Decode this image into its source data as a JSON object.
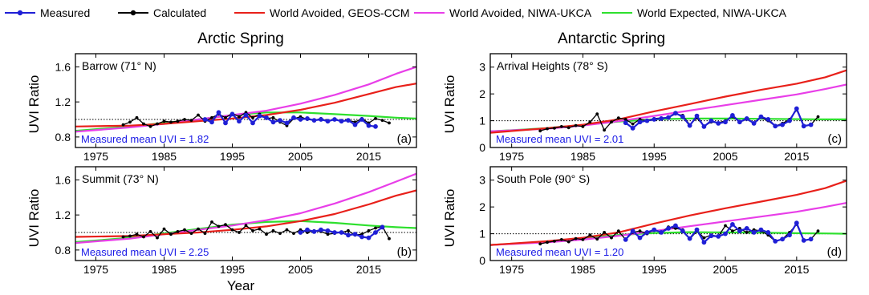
{
  "legend": [
    {
      "key": "measured",
      "label": "Measured",
      "color": "#1f1fd6",
      "marker": "dot"
    },
    {
      "key": "calculated",
      "label": "Calculated",
      "color": "#000000",
      "marker": "dot"
    },
    {
      "key": "wa_geos",
      "label": "World Avoided, GEOS-CCM",
      "color": "#e8201a",
      "marker": "none"
    },
    {
      "key": "wa_niwa",
      "label": "World Avoided, NIWA-UKCA",
      "color": "#e83ee8",
      "marker": "none"
    },
    {
      "key": "we_niwa",
      "label": "World Expected, NIWA-UKCA",
      "color": "#2ee02e",
      "marker": "none"
    }
  ],
  "column_titles": {
    "left": "Arctic Spring",
    "right": "Antarctic Spring"
  },
  "xlabel": "Year",
  "ylabel": "UVI Ratio",
  "chart_data": [
    {
      "id": "a",
      "type": "line",
      "letter": "(a)",
      "site": "Barrow (71° N)",
      "mean_label": "Measured mean UVI = 1.82",
      "xlim": [
        1972,
        2022
      ],
      "ylim": [
        0.68,
        1.75
      ],
      "yticks": [
        0.8,
        1.2,
        1.6
      ],
      "xticks": [
        1975,
        1985,
        1995,
        2005,
        2015
      ],
      "reference_line": 1.0,
      "series": [
        {
          "key": "wa_geos",
          "x": [
            1972,
            1980,
            1985,
            1990,
            1995,
            2000,
            2005,
            2010,
            2015,
            2019,
            2022
          ],
          "y": [
            0.92,
            0.93,
            0.95,
            0.98,
            1.01,
            1.05,
            1.11,
            1.19,
            1.29,
            1.37,
            1.41
          ]
        },
        {
          "key": "wa_niwa",
          "x": [
            1972,
            1980,
            1985,
            1990,
            1995,
            2000,
            2005,
            2010,
            2015,
            2019,
            2022
          ],
          "y": [
            0.86,
            0.91,
            0.95,
            1.0,
            1.05,
            1.1,
            1.18,
            1.28,
            1.4,
            1.52,
            1.6
          ]
        },
        {
          "key": "we_niwa",
          "x": [
            1972,
            1980,
            1985,
            1990,
            1995,
            2000,
            2005,
            2010,
            2015,
            2019,
            2022
          ],
          "y": [
            0.87,
            0.92,
            0.96,
            1.0,
            1.05,
            1.08,
            1.08,
            1.06,
            1.04,
            1.02,
            1.01
          ]
        },
        {
          "key": "calculated",
          "x": [
            1979,
            1980,
            1981,
            1982,
            1983,
            1984,
            1985,
            1986,
            1987,
            1988,
            1989,
            1990,
            1991,
            1992,
            1993,
            1994,
            1995,
            1996,
            1997,
            1998,
            1999,
            2000,
            2001,
            2002,
            2003,
            2004,
            2005,
            2006,
            2007,
            2008,
            2009,
            2010,
            2011,
            2012,
            2013,
            2014,
            2015,
            2016,
            2017,
            2018
          ],
          "y": [
            0.94,
            0.97,
            1.02,
            0.95,
            0.92,
            0.95,
            0.98,
            0.97,
            0.98,
            1.0,
            0.99,
            1.05,
            0.98,
            1.02,
            1.06,
            1.02,
            1.07,
            1.03,
            1.08,
            1.02,
            1.06,
            1.01,
            1.02,
            0.97,
            0.93,
            1.01,
            1.03,
            1.0,
            0.99,
            1.01,
            0.98,
            1.0,
            0.98,
            0.99,
            0.97,
            1.01,
            0.96,
            1.01,
            0.99,
            0.96
          ]
        },
        {
          "key": "measured",
          "x": [
            1991,
            1992,
            1993,
            1994,
            1995,
            1996,
            1997,
            1998,
            1999,
            2000,
            2001,
            2002,
            2003,
            2004,
            2005,
            2006,
            2007,
            2008,
            2009,
            2010,
            2011,
            2012,
            2013,
            2014,
            2015,
            2016
          ],
          "y": [
            1.0,
            0.97,
            1.08,
            0.96,
            1.06,
            0.98,
            1.05,
            0.96,
            1.04,
            1.02,
            0.97,
            0.99,
            0.96,
            1.02,
            1.0,
            1.01,
            0.99,
            1.0,
            0.98,
            1.0,
            0.98,
            0.99,
            0.94,
            1.0,
            0.93,
            0.92
          ]
        }
      ]
    },
    {
      "id": "b",
      "type": "line",
      "letter": "(b)",
      "site": "Summit (73° N)",
      "mean_label": "Measured mean UVI = 2.25",
      "xlim": [
        1972,
        2022
      ],
      "ylim": [
        0.68,
        1.75
      ],
      "yticks": [
        0.8,
        1.2,
        1.6
      ],
      "xticks": [
        1975,
        1985,
        1995,
        2005,
        2015
      ],
      "reference_line": 1.0,
      "series": [
        {
          "key": "wa_geos",
          "x": [
            1972,
            1980,
            1985,
            1990,
            1995,
            2000,
            2005,
            2010,
            2015,
            2019,
            2022
          ],
          "y": [
            0.95,
            0.96,
            0.98,
            1.0,
            1.03,
            1.07,
            1.13,
            1.21,
            1.32,
            1.42,
            1.48
          ]
        },
        {
          "key": "wa_niwa",
          "x": [
            1972,
            1980,
            1985,
            1990,
            1995,
            2000,
            2005,
            2010,
            2015,
            2019,
            2022
          ],
          "y": [
            0.88,
            0.93,
            0.98,
            1.03,
            1.08,
            1.14,
            1.22,
            1.33,
            1.46,
            1.58,
            1.67
          ]
        },
        {
          "key": "we_niwa",
          "x": [
            1972,
            1980,
            1985,
            1990,
            1995,
            2000,
            2005,
            2010,
            2015,
            2019,
            2022
          ],
          "y": [
            0.89,
            0.94,
            0.99,
            1.04,
            1.09,
            1.12,
            1.13,
            1.11,
            1.08,
            1.06,
            1.05
          ]
        },
        {
          "key": "calculated",
          "x": [
            1979,
            1980,
            1981,
            1982,
            1983,
            1984,
            1985,
            1986,
            1987,
            1988,
            1989,
            1990,
            1991,
            1992,
            1993,
            1994,
            1995,
            1996,
            1997,
            1998,
            1999,
            2000,
            2001,
            2002,
            2003,
            2004,
            2005,
            2006,
            2007,
            2008,
            2009,
            2010,
            2011,
            2012,
            2013,
            2014,
            2015,
            2016,
            2017,
            2018
          ],
          "y": [
            0.95,
            0.96,
            0.98,
            0.95,
            1.01,
            0.94,
            1.04,
            0.98,
            1.01,
            1.03,
            0.99,
            1.04,
            0.99,
            1.12,
            1.07,
            1.09,
            1.03,
            1.0,
            1.08,
            1.02,
            1.04,
            0.98,
            1.02,
            0.99,
            1.03,
            0.99,
            1.03,
            1.0,
            1.02,
            1.01,
            0.98,
            0.99,
            1.0,
            1.02,
            0.97,
            0.98,
            1.02,
            1.05,
            1.07,
            0.93
          ]
        },
        {
          "key": "measured",
          "x": [
            2005,
            2006,
            2007,
            2008,
            2009,
            2010,
            2011,
            2012,
            2013,
            2014,
            2015,
            2016,
            2017
          ],
          "y": [
            1.0,
            1.03,
            1.01,
            1.03,
            1.02,
            1.0,
            1.0,
            0.97,
            0.98,
            0.95,
            0.94,
            1.0,
            1.06
          ]
        }
      ]
    },
    {
      "id": "c",
      "type": "line",
      "letter": "(c)",
      "site": "Arrival Heights (78° S)",
      "mean_label": "Measured mean UVI = 2.01",
      "xlim": [
        1972,
        2022
      ],
      "ylim": [
        0,
        3.5
      ],
      "yticks": [
        0,
        1,
        2,
        3
      ],
      "xticks": [
        1975,
        1985,
        1995,
        2005,
        2015
      ],
      "reference_line": 1.0,
      "series": [
        {
          "key": "wa_geos",
          "x": [
            1972,
            1980,
            1985,
            1990,
            1995,
            2000,
            2005,
            2010,
            2015,
            2019,
            2022
          ],
          "y": [
            0.55,
            0.72,
            0.85,
            1.05,
            1.35,
            1.62,
            1.9,
            2.15,
            2.38,
            2.62,
            2.88
          ]
        },
        {
          "key": "wa_niwa",
          "x": [
            1972,
            1980,
            1985,
            1990,
            1995,
            2000,
            2005,
            2010,
            2015,
            2019,
            2022
          ],
          "y": [
            0.6,
            0.7,
            0.82,
            0.98,
            1.18,
            1.38,
            1.58,
            1.78,
            1.98,
            2.18,
            2.35
          ]
        },
        {
          "key": "we_niwa",
          "x": [
            1972,
            1980,
            1985,
            1990,
            1995,
            2000,
            2005,
            2010,
            2015,
            2019,
            2022
          ],
          "y": [
            0.6,
            0.72,
            0.84,
            0.97,
            1.05,
            1.08,
            1.08,
            1.07,
            1.06,
            1.05,
            1.05
          ]
        },
        {
          "key": "calculated",
          "x": [
            1979,
            1980,
            1981,
            1982,
            1983,
            1984,
            1985,
            1986,
            1987,
            1988,
            1989,
            1990,
            1991,
            1992,
            1993,
            1994,
            1995,
            1996,
            1997,
            1998,
            1999,
            2000,
            2001,
            2002,
            2003,
            2004,
            2005,
            2006,
            2007,
            2008,
            2009,
            2010,
            2011,
            2012,
            2013,
            2014,
            2015,
            2016,
            2017,
            2018
          ],
          "y": [
            0.62,
            0.7,
            0.72,
            0.78,
            0.74,
            0.82,
            0.78,
            0.95,
            1.25,
            0.65,
            0.95,
            1.1,
            1.05,
            0.88,
            1.05,
            1.0,
            1.08,
            1.1,
            1.12,
            1.25,
            1.2,
            0.85,
            1.1,
            0.8,
            0.95,
            0.92,
            1.0,
            1.15,
            0.95,
            1.05,
            0.9,
            1.12,
            1.0,
            0.8,
            0.9,
            1.05,
            1.4,
            0.82,
            0.85,
            1.15
          ]
        },
        {
          "key": "measured",
          "x": [
            1991,
            1992,
            1993,
            1994,
            1995,
            1996,
            1997,
            1998,
            1999,
            2000,
            2001,
            2002,
            2003,
            2004,
            2005,
            2006,
            2007,
            2008,
            2009,
            2010,
            2011,
            2012,
            2013,
            2014,
            2015,
            2016,
            2017
          ],
          "y": [
            0.92,
            0.72,
            0.95,
            1.0,
            1.05,
            1.08,
            1.12,
            1.28,
            1.15,
            0.82,
            1.18,
            0.78,
            1.0,
            0.9,
            0.95,
            1.2,
            0.95,
            1.08,
            0.9,
            1.15,
            1.05,
            0.8,
            0.85,
            1.0,
            1.45,
            0.8,
            0.85
          ]
        }
      ]
    },
    {
      "id": "d",
      "type": "line",
      "letter": "(d)",
      "site": "South Pole (90° S)",
      "mean_label": "Measured mean UVI = 1.20",
      "xlim": [
        1972,
        2022
      ],
      "ylim": [
        0,
        3.5
      ],
      "yticks": [
        0,
        1,
        2,
        3
      ],
      "xticks": [
        1975,
        1985,
        1995,
        2005,
        2015
      ],
      "reference_line": 1.0,
      "series": [
        {
          "key": "wa_geos",
          "x": [
            1972,
            1980,
            1985,
            1990,
            1995,
            2000,
            2005,
            2010,
            2015,
            2019,
            2022
          ],
          "y": [
            0.58,
            0.72,
            0.85,
            1.05,
            1.38,
            1.68,
            1.95,
            2.2,
            2.45,
            2.7,
            2.98
          ]
        },
        {
          "key": "wa_niwa",
          "x": [
            1972,
            1980,
            1985,
            1990,
            1995,
            2000,
            2005,
            2010,
            2015,
            2019,
            2022
          ],
          "y": [
            0.58,
            0.68,
            0.78,
            0.92,
            1.1,
            1.28,
            1.46,
            1.64,
            1.82,
            2.0,
            2.15
          ]
        },
        {
          "key": "we_niwa",
          "x": [
            1972,
            1980,
            1985,
            1990,
            1995,
            2000,
            2005,
            2010,
            2015,
            2019,
            2022
          ],
          "y": [
            0.58,
            0.7,
            0.82,
            0.95,
            1.03,
            1.06,
            1.05,
            1.04,
            1.02,
            1.01,
            1.0
          ]
        },
        {
          "key": "calculated",
          "x": [
            1979,
            1980,
            1981,
            1982,
            1983,
            1984,
            1985,
            1986,
            1987,
            1988,
            1989,
            1990,
            1991,
            1992,
            1993,
            1994,
            1995,
            1996,
            1997,
            1998,
            1999,
            2000,
            2001,
            2002,
            2003,
            2004,
            2005,
            2006,
            2007,
            2008,
            2009,
            2010,
            2011,
            2012,
            2013,
            2014,
            2015,
            2016,
            2017,
            2018
          ],
          "y": [
            0.62,
            0.68,
            0.72,
            0.78,
            0.7,
            0.82,
            0.78,
            0.95,
            0.8,
            1.05,
            0.85,
            1.1,
            0.78,
            1.05,
            1.1,
            1.0,
            1.15,
            1.05,
            1.25,
            1.2,
            1.15,
            0.8,
            1.1,
            0.85,
            0.95,
            0.9,
            1.3,
            1.1,
            1.2,
            1.05,
            1.15,
            1.1,
            0.95,
            0.72,
            0.8,
            1.05,
            1.35,
            0.75,
            0.8,
            1.1
          ]
        },
        {
          "key": "measured",
          "x": [
            1991,
            1992,
            1993,
            1994,
            1995,
            1996,
            1997,
            1998,
            1999,
            2000,
            2001,
            2002,
            2003,
            2004,
            2005,
            2006,
            2007,
            2008,
            2009,
            2010,
            2011,
            2012,
            2013,
            2014,
            2015,
            2016,
            2017
          ],
          "y": [
            0.78,
            1.1,
            0.85,
            1.05,
            1.15,
            1.05,
            1.2,
            1.3,
            1.1,
            0.82,
            1.15,
            0.68,
            0.92,
            0.9,
            1.0,
            1.35,
            1.1,
            1.2,
            1.05,
            1.15,
            1.05,
            0.72,
            0.8,
            0.95,
            1.4,
            0.75,
            0.8
          ]
        }
      ]
    }
  ]
}
